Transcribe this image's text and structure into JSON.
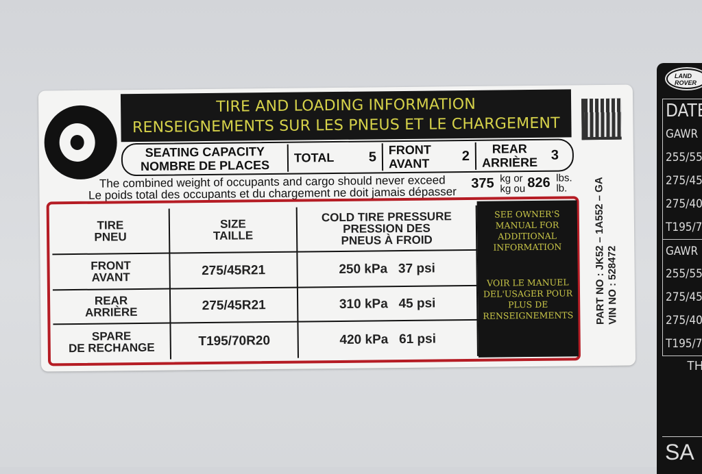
{
  "header": {
    "title_en": "TIRE AND LOADING INFORMATION",
    "title_fr": "RENSEIGNEMENTS SUR LES PNEUS ET LE CHARGEMENT"
  },
  "seating": {
    "label_en": "SEATING CAPACITY",
    "label_fr": "NOMBRE DE PLACES",
    "total_label": "TOTAL",
    "total": "5",
    "front_en": "FRONT",
    "front_fr": "AVANT",
    "front": "2",
    "rear_en": "REAR",
    "rear_fr": "ARRIÈRE",
    "rear": "3"
  },
  "weight": {
    "line_en": "The combined weight of occupants and cargo should never exceed",
    "line_fr": "Le poids total des occupants et du chargement ne doit jamais dépasser",
    "kg": "375",
    "kg_unit_en": "kg or",
    "kg_unit_fr": "kg ou",
    "lb": "826",
    "lb_unit_en": "lbs.",
    "lb_unit_fr": "lb."
  },
  "table": {
    "headers": [
      [
        "TIRE",
        "PNEU"
      ],
      [
        "SIZE",
        "TAILLE"
      ],
      [
        "COLD TIRE PRESSURE",
        "PRESSION DES",
        "PNEUS À FROID"
      ]
    ],
    "rows": [
      {
        "pos_en": "FRONT",
        "pos_fr": "AVANT",
        "size": "275/45R21",
        "pressure": "250 kPa   37 psi"
      },
      {
        "pos_en": "REAR",
        "pos_fr": "ARRIÈRE",
        "size": "275/45R21",
        "pressure": "310 kPa   45 psi"
      },
      {
        "pos_en": "SPARE",
        "pos_fr": "DE RECHANGE",
        "size": "T195/70R20",
        "pressure": "420 kPa   61 psi"
      }
    ],
    "note_en": "SEE OWNER'S MANUAL FOR ADDITIONAL INFORMATION",
    "note_fr": "VOIR LE MANUEL DEL'USAGER POUR PLUS DE RENSEIGNEMENTS"
  },
  "part": {
    "part_no": "PART NO : JK52 – 1A552 – GA",
    "vin_no": "VIN NO : 528472"
  },
  "right_label": {
    "logo": "LAND ROVER",
    "rows": [
      "DATE",
      "GAWR F",
      "255/55",
      "275/45",
      "275/40",
      "T195/7",
      "GAWR",
      "255/55",
      "275/45",
      "275/40",
      "T195/7"
    ],
    "footer_1": "TH",
    "footer_2": "SA"
  },
  "colors": {
    "label_bg": "#f4f4f3",
    "header_bg": "#161616",
    "header_text": "#d6d24a",
    "table_border": "#b51c24"
  }
}
